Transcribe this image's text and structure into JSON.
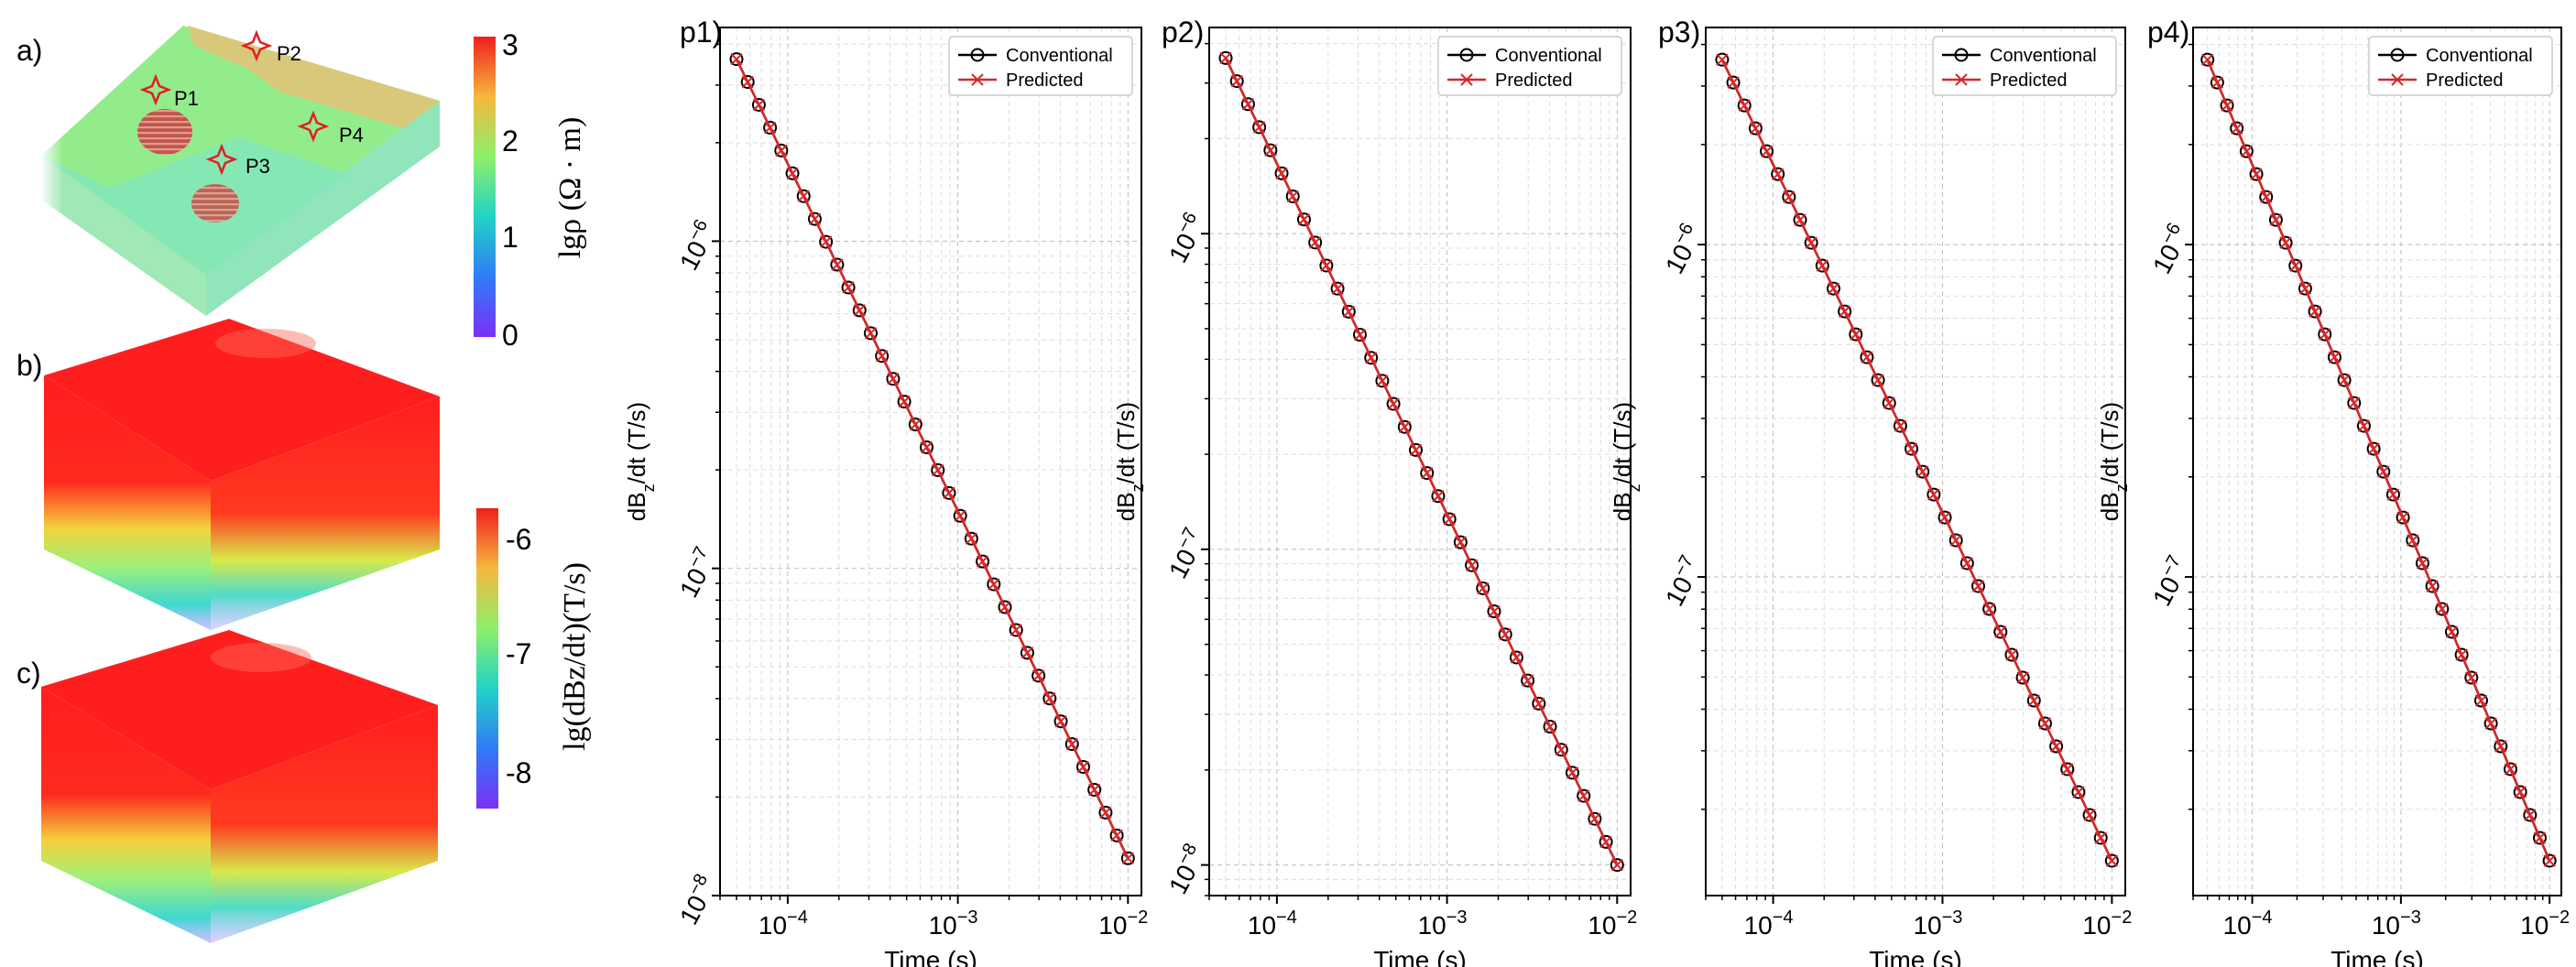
{
  "left_panels": {
    "labels": [
      "a)",
      "b)",
      "c)"
    ],
    "points": [
      "P1",
      "P2",
      "P3",
      "P4"
    ],
    "colorbar_rho": {
      "label": "lgρ (Ω · m)",
      "ticks": [
        "0",
        "1",
        "2",
        "3"
      ]
    },
    "colorbar_dbdt": {
      "label": "lg(dBz/dt)(T/s)",
      "ticks": [
        "-8",
        "-7",
        "-6"
      ]
    }
  },
  "chart_data": [
    {
      "type": "line",
      "panel_label": "p1)",
      "xlabel": "Time (s)",
      "ylabel": "dBz/dt (T/s)",
      "xscale": "log",
      "yscale": "log",
      "xlim": [
        4e-05,
        0.012
      ],
      "ylim": [
        1e-08,
        4.5e-06
      ],
      "x_ticks": [
        "10^-4",
        "10^-3",
        "10^-2"
      ],
      "y_ticks": [
        "10^-8",
        "10^-7",
        "10^-6"
      ],
      "legend": {
        "position": "top-right",
        "entries": [
          "Conventional",
          "Predicted"
        ]
      },
      "grid": true,
      "series": [
        {
          "name": "Conventional",
          "marker": "o",
          "color": "#000000",
          "x_range": [
            5e-05,
            0.01
          ],
          "y_range": [
            3.6e-06,
            1.3e-08
          ],
          "n_points": 36
        },
        {
          "name": "Predicted",
          "marker": "x",
          "color": "#d62728",
          "x_range": [
            5e-05,
            0.01
          ],
          "y_range": [
            3.6e-06,
            1.3e-08
          ],
          "n_points": 36
        }
      ]
    },
    {
      "type": "line",
      "panel_label": "p2)",
      "xlabel": "Time (s)",
      "ylabel": "dBz/dt (T/s)",
      "xscale": "log",
      "yscale": "log",
      "xlim": [
        4e-05,
        0.012
      ],
      "ylim": [
        8e-09,
        4.5e-06
      ],
      "x_ticks": [
        "10^-4",
        "10^-3",
        "10^-2"
      ],
      "y_ticks": [
        "10^-8",
        "10^-7",
        "10^-6"
      ],
      "legend": {
        "position": "top-right",
        "entries": [
          "Conventional",
          "Predicted"
        ]
      },
      "grid": true,
      "series": [
        {
          "name": "Conventional",
          "marker": "o",
          "color": "#000000",
          "x_range": [
            5e-05,
            0.01
          ],
          "y_range": [
            3.6e-06,
            1e-08
          ],
          "n_points": 36
        },
        {
          "name": "Predicted",
          "marker": "x",
          "color": "#d62728",
          "x_range": [
            5e-05,
            0.01
          ],
          "y_range": [
            3.6e-06,
            1e-08
          ],
          "n_points": 36
        }
      ]
    },
    {
      "type": "line",
      "panel_label": "p3)",
      "xlabel": "Time (s)",
      "ylabel": "dBz/dt (T/s)",
      "xscale": "log",
      "yscale": "log",
      "xlim": [
        4e-05,
        0.012
      ],
      "ylim": [
        1.1e-08,
        4.5e-06
      ],
      "x_ticks": [
        "10^-4",
        "10^-3",
        "10^-2"
      ],
      "y_ticks": [
        "10^-7",
        "10^-6"
      ],
      "legend": {
        "position": "top-right",
        "entries": [
          "Conventional",
          "Predicted"
        ]
      },
      "grid": true,
      "series": [
        {
          "name": "Conventional",
          "marker": "o",
          "color": "#000000",
          "x_range": [
            5e-05,
            0.01
          ],
          "y_range": [
            3.6e-06,
            1.4e-08
          ],
          "n_points": 36
        },
        {
          "name": "Predicted",
          "marker": "x",
          "color": "#d62728",
          "x_range": [
            5e-05,
            0.01
          ],
          "y_range": [
            3.6e-06,
            1.4e-08
          ],
          "n_points": 36
        }
      ]
    },
    {
      "type": "line",
      "panel_label": "p4)",
      "xlabel": "Time (s)",
      "ylabel": "dBz/dt (T/s)",
      "xscale": "log",
      "yscale": "log",
      "xlim": [
        4e-05,
        0.012
      ],
      "ylim": [
        1.1e-08,
        4.5e-06
      ],
      "x_ticks": [
        "10^-4",
        "10^-3",
        "10^-2"
      ],
      "y_ticks": [
        "10^-7",
        "10^-6"
      ],
      "legend": {
        "position": "top-right",
        "entries": [
          "Conventional",
          "Predicted"
        ]
      },
      "grid": true,
      "series": [
        {
          "name": "Conventional",
          "marker": "o",
          "color": "#000000",
          "x_range": [
            5e-05,
            0.01
          ],
          "y_range": [
            3.6e-06,
            1.4e-08
          ],
          "n_points": 36
        },
        {
          "name": "Predicted",
          "marker": "x",
          "color": "#d62728",
          "x_range": [
            5e-05,
            0.01
          ],
          "y_range": [
            3.6e-06,
            1.4e-08
          ],
          "n_points": 36
        }
      ]
    }
  ]
}
